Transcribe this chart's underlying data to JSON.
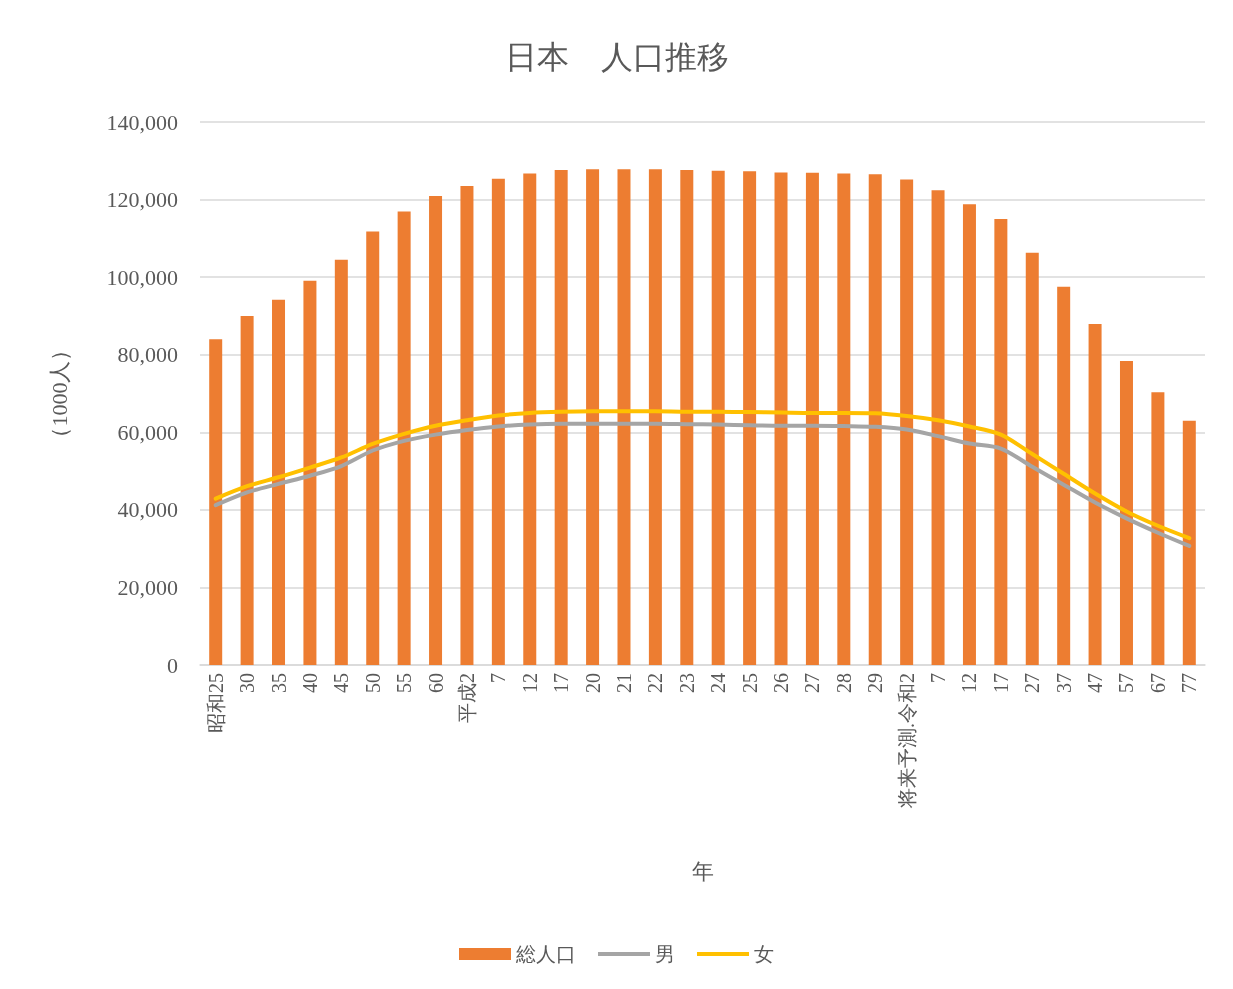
{
  "chart_data": {
    "type": "bar",
    "title": "日本　人口推移",
    "xlabel": "年",
    "ylabel": "（1000人）",
    "categories": [
      "昭和25",
      "30",
      "35",
      "40",
      "45",
      "50",
      "55",
      "60",
      "平成2",
      "7",
      "12",
      "17",
      "20",
      "21",
      "22",
      "23",
      "24",
      "25",
      "26",
      "27",
      "28",
      "29",
      "将来予測.令和2",
      "7",
      "12",
      "17",
      "27",
      "37",
      "47",
      "57",
      "67",
      "77"
    ],
    "series": [
      {
        "name": "総人口",
        "color": "#ed7d31",
        "values": [
          84000,
          90000,
          94200,
          99100,
          104500,
          111800,
          116900,
          120900,
          123500,
          125400,
          126700,
          127600,
          127800,
          127800,
          127800,
          127600,
          127400,
          127300,
          127000,
          126900,
          126700,
          126500,
          125200,
          122400,
          118800,
          115000,
          106300,
          97500,
          87900,
          78400,
          70300,
          63000
        ]
      },
      {
        "name": "男",
        "type": "line",
        "color": "#a5a5a5",
        "values": [
          41200,
          44500,
          46700,
          48800,
          51300,
          55300,
          57800,
          59400,
          60600,
          61500,
          62000,
          62200,
          62200,
          62200,
          62200,
          62100,
          62000,
          61800,
          61700,
          61700,
          61600,
          61400,
          60700,
          59000,
          57100,
          55800,
          51100,
          46500,
          41900,
          37800,
          34100,
          30700
        ]
      },
      {
        "name": "女",
        "type": "line",
        "color": "#ffc000",
        "values": [
          42900,
          46100,
          48400,
          50900,
          53500,
          57000,
          59600,
          61700,
          63100,
          64300,
          65000,
          65300,
          65400,
          65400,
          65400,
          65300,
          65300,
          65200,
          65100,
          65000,
          65000,
          64900,
          64200,
          63100,
          61500,
          59400,
          54400,
          49300,
          44200,
          39600,
          35900,
          32700
        ]
      }
    ],
    "ylim": [
      0,
      140000
    ],
    "yticks": [
      0,
      {
        "value": 20000,
        "label": "20,000"
      },
      {
        "value": 40000,
        "label": "40,000"
      },
      {
        "value": 60000,
        "label": "60,000"
      },
      {
        "value": 80000,
        "label": "80,000"
      },
      {
        "value": 100000,
        "label": "100,000"
      },
      {
        "value": 120000,
        "label": "120,000"
      },
      {
        "value": 140000,
        "label": "140,000"
      }
    ],
    "grid": "y",
    "legend": "bottom",
    "marker": "none",
    "line_style": "solid"
  }
}
